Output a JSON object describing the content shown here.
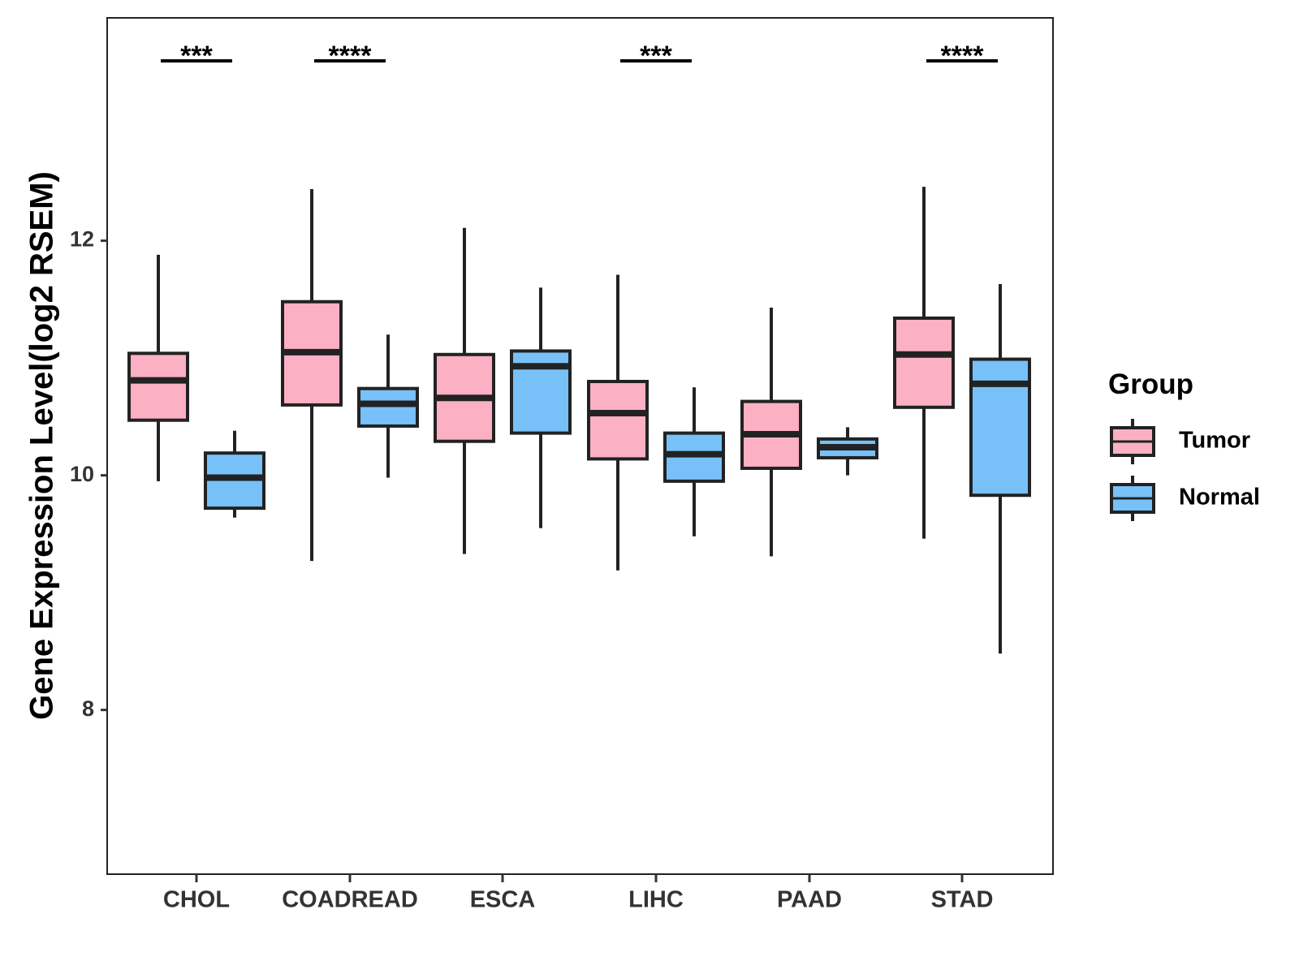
{
  "chart_data": {
    "type": "boxplot",
    "ylabel": "Gene Expression Level(log2 RSEM)",
    "xlabel": "",
    "ylim": [
      6.6,
      13.9
    ],
    "yticks": [
      8,
      10,
      12
    ],
    "ytick_labels": [
      "8",
      "10",
      "12"
    ],
    "categories": [
      "CHOL",
      "COADREAD",
      "ESCA",
      "LIHC",
      "PAAD",
      "STAD"
    ],
    "legend": {
      "title": "Group",
      "placement": "right",
      "entries": [
        "Tumor",
        "Normal"
      ]
    },
    "colors": {
      "Tumor": "#FBB0C3",
      "Normal": "#77C1F8",
      "stroke": "#222222"
    },
    "series": [
      {
        "name": "Tumor",
        "boxes": [
          {
            "category": "CHOL",
            "whisker_low": 9.95,
            "q1": 10.47,
            "median": 10.81,
            "q3": 11.04,
            "whisker_high": 11.88
          },
          {
            "category": "COADREAD",
            "whisker_low": 9.27,
            "q1": 10.6,
            "median": 11.05,
            "q3": 11.48,
            "whisker_high": 12.44
          },
          {
            "category": "ESCA",
            "whisker_low": 9.33,
            "q1": 10.29,
            "median": 10.66,
            "q3": 11.03,
            "whisker_high": 12.11
          },
          {
            "category": "LIHC",
            "whisker_low": 9.19,
            "q1": 10.14,
            "median": 10.53,
            "q3": 10.8,
            "whisker_high": 11.71
          },
          {
            "category": "PAAD",
            "whisker_low": 9.31,
            "q1": 10.06,
            "median": 10.35,
            "q3": 10.63,
            "whisker_high": 11.43
          },
          {
            "category": "STAD",
            "whisker_low": 9.46,
            "q1": 10.58,
            "median": 11.03,
            "q3": 11.34,
            "whisker_high": 12.46
          }
        ]
      },
      {
        "name": "Normal",
        "boxes": [
          {
            "category": "CHOL",
            "whisker_low": 9.64,
            "q1": 9.72,
            "median": 9.98,
            "q3": 10.19,
            "whisker_high": 10.38
          },
          {
            "category": "COADREAD",
            "whisker_low": 9.98,
            "q1": 10.42,
            "median": 10.61,
            "q3": 10.74,
            "whisker_high": 11.2
          },
          {
            "category": "ESCA",
            "whisker_low": 9.55,
            "q1": 10.36,
            "median": 10.93,
            "q3": 11.06,
            "whisker_high": 11.6
          },
          {
            "category": "LIHC",
            "whisker_low": 9.48,
            "q1": 9.95,
            "median": 10.18,
            "q3": 10.36,
            "whisker_high": 10.75
          },
          {
            "category": "PAAD",
            "whisker_low": 10.0,
            "q1": 10.15,
            "median": 10.24,
            "q3": 10.31,
            "whisker_high": 10.41
          },
          {
            "category": "STAD",
            "whisker_low": 8.48,
            "q1": 9.83,
            "median": 10.78,
            "q3": 10.99,
            "whisker_high": 11.63
          }
        ]
      }
    ],
    "annotations": [
      {
        "category": "CHOL",
        "label": "***"
      },
      {
        "category": "COADREAD",
        "label": "****"
      },
      {
        "category": "LIHC",
        "label": "***"
      },
      {
        "category": "STAD",
        "label": "****"
      }
    ]
  }
}
